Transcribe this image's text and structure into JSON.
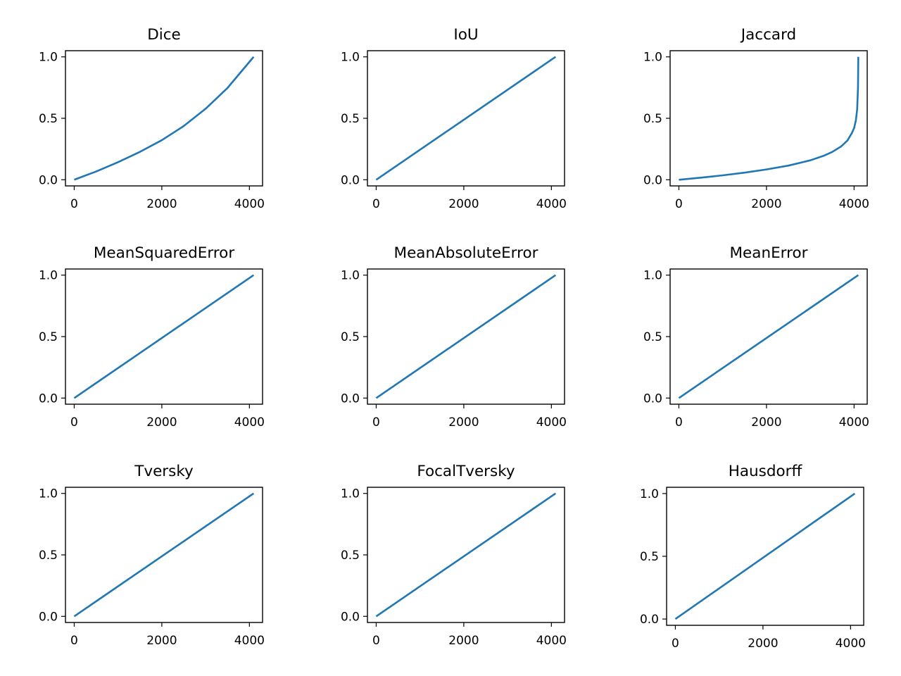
{
  "figure": {
    "background": "#ffffff",
    "line_color": "#1f77b4"
  },
  "chart_data": [
    {
      "type": "line",
      "title": "Dice",
      "xlabel": "",
      "ylabel": "",
      "xlim": [
        -200,
        4300
      ],
      "ylim": [
        -0.05,
        1.05
      ],
      "xticks": [
        0,
        2000,
        4000
      ],
      "xtick_labels": [
        "0",
        "2000",
        "4000"
      ],
      "yticks": [
        0.0,
        0.5,
        1.0
      ],
      "ytick_labels": [
        "0.0",
        "0.5",
        "1.0"
      ],
      "grid": false,
      "series": [
        {
          "x": [
            0,
            500,
            1000,
            1500,
            2000,
            2500,
            3000,
            3500,
            4096
          ],
          "y": [
            0,
            0.067,
            0.143,
            0.227,
            0.322,
            0.437,
            0.578,
            0.747,
            1.0
          ]
        }
      ]
    },
    {
      "type": "line",
      "title": "IoU",
      "xlabel": "",
      "ylabel": "",
      "xlim": [
        -200,
        4300
      ],
      "ylim": [
        -0.05,
        1.05
      ],
      "xticks": [
        0,
        2000,
        4000
      ],
      "xtick_labels": [
        "0",
        "2000",
        "4000"
      ],
      "yticks": [
        0.0,
        0.5,
        1.0
      ],
      "ytick_labels": [
        "0.0",
        "0.5",
        "1.0"
      ],
      "grid": false,
      "series": [
        {
          "x": [
            0,
            4096
          ],
          "y": [
            0,
            1.0
          ]
        }
      ]
    },
    {
      "type": "line",
      "title": "Jaccard",
      "xlabel": "",
      "ylabel": "",
      "xlim": [
        -200,
        4300
      ],
      "ylim": [
        -0.05,
        1.05
      ],
      "xticks": [
        0,
        2000,
        4000
      ],
      "xtick_labels": [
        "0",
        "2000",
        "4000"
      ],
      "yticks": [
        0.0,
        0.5,
        1.0
      ],
      "ytick_labels": [
        "0.0",
        "0.5",
        "1.0"
      ],
      "grid": false,
      "series": [
        {
          "x": [
            0,
            500,
            1000,
            1500,
            2000,
            2500,
            3000,
            3300,
            3500,
            3700,
            3850,
            3950,
            4000,
            4040,
            4070,
            4090,
            4096
          ],
          "y": [
            0,
            0.017,
            0.036,
            0.058,
            0.084,
            0.115,
            0.158,
            0.194,
            0.226,
            0.27,
            0.32,
            0.38,
            0.42,
            0.48,
            0.57,
            0.75,
            1.0
          ]
        }
      ]
    },
    {
      "type": "line",
      "title": "MeanSquaredError",
      "xlabel": "",
      "ylabel": "",
      "xlim": [
        -200,
        4300
      ],
      "ylim": [
        -0.05,
        1.05
      ],
      "xticks": [
        0,
        2000,
        4000
      ],
      "xtick_labels": [
        "0",
        "2000",
        "4000"
      ],
      "yticks": [
        0.0,
        0.5,
        1.0
      ],
      "ytick_labels": [
        "0.0",
        "0.5",
        "1.0"
      ],
      "grid": false,
      "series": [
        {
          "x": [
            0,
            4096
          ],
          "y": [
            0,
            1.0
          ]
        }
      ]
    },
    {
      "type": "line",
      "title": "MeanAbsoluteError",
      "xlabel": "",
      "ylabel": "",
      "xlim": [
        -200,
        4300
      ],
      "ylim": [
        -0.05,
        1.05
      ],
      "xticks": [
        0,
        2000,
        4000
      ],
      "xtick_labels": [
        "0",
        "2000",
        "4000"
      ],
      "yticks": [
        0.0,
        0.5,
        1.0
      ],
      "ytick_labels": [
        "0.0",
        "0.5",
        "1.0"
      ],
      "grid": false,
      "series": [
        {
          "x": [
            0,
            4096
          ],
          "y": [
            0,
            1.0
          ]
        }
      ]
    },
    {
      "type": "line",
      "title": "MeanError",
      "xlabel": "",
      "ylabel": "",
      "xlim": [
        -200,
        4300
      ],
      "ylim": [
        -0.05,
        1.05
      ],
      "xticks": [
        0,
        2000,
        4000
      ],
      "xtick_labels": [
        "0",
        "2000",
        "4000"
      ],
      "yticks": [
        0.0,
        0.5,
        1.0
      ],
      "ytick_labels": [
        "0.0",
        "0.5",
        "1.0"
      ],
      "grid": false,
      "series": [
        {
          "x": [
            0,
            4096
          ],
          "y": [
            0,
            1.0
          ]
        }
      ]
    },
    {
      "type": "line",
      "title": "Tversky",
      "xlabel": "",
      "ylabel": "",
      "xlim": [
        -200,
        4300
      ],
      "ylim": [
        -0.05,
        1.05
      ],
      "xticks": [
        0,
        2000,
        4000
      ],
      "xtick_labels": [
        "0",
        "2000",
        "4000"
      ],
      "yticks": [
        0.0,
        0.5,
        1.0
      ],
      "ytick_labels": [
        "0.0",
        "0.5",
        "1.0"
      ],
      "grid": false,
      "series": [
        {
          "x": [
            0,
            4096
          ],
          "y": [
            0,
            1.0
          ]
        }
      ]
    },
    {
      "type": "line",
      "title": "FocalTversky",
      "xlabel": "",
      "ylabel": "",
      "xlim": [
        -200,
        4300
      ],
      "ylim": [
        -0.05,
        1.05
      ],
      "xticks": [
        0,
        2000,
        4000
      ],
      "xtick_labels": [
        "0",
        "2000",
        "4000"
      ],
      "yticks": [
        0.0,
        0.5,
        1.0
      ],
      "ytick_labels": [
        "0.0",
        "0.5",
        "1.0"
      ],
      "grid": false,
      "series": [
        {
          "x": [
            0,
            4096
          ],
          "y": [
            0,
            1.0
          ]
        }
      ]
    },
    {
      "type": "line",
      "title": "Hausdorff",
      "xlabel": "",
      "ylabel": "",
      "xlim": [
        -200,
        4300
      ],
      "ylim": [
        -0.05,
        1.05
      ],
      "xticks": [
        0,
        2000,
        4000
      ],
      "xtick_labels": [
        "0",
        "2000",
        "4000"
      ],
      "yticks": [
        0.0,
        0.5,
        1.0
      ],
      "ytick_labels": [
        "0.0",
        "0.5",
        "1.0"
      ],
      "grid": false,
      "series": [
        {
          "x": [
            0,
            4096
          ],
          "y": [
            0,
            1.0
          ]
        }
      ]
    }
  ]
}
